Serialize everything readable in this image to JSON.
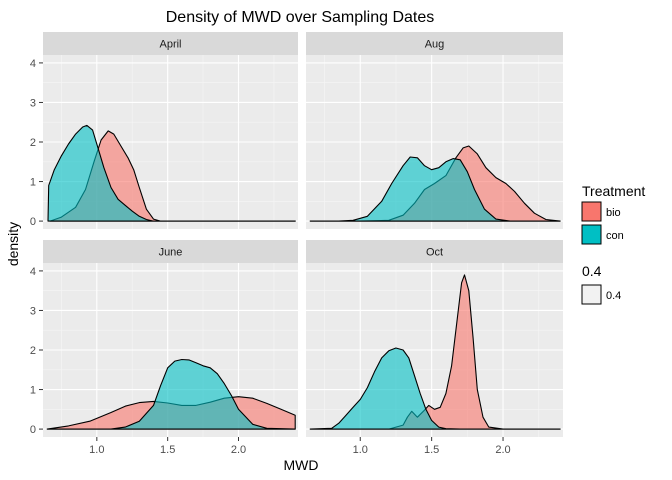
{
  "chart_data": {
    "type": "area",
    "title": "Density of MWD over Sampling Dates",
    "xlabel": "MWD",
    "ylabel": "density",
    "xlim": [
      0.62,
      2.42
    ],
    "ylim": [
      -0.2,
      4.2
    ],
    "x_ticks": [
      1.0,
      1.5,
      2.0
    ],
    "x_tick_labels": [
      "1.0",
      "1.5",
      "2.0"
    ],
    "y_ticks": [
      0,
      1,
      2,
      3,
      4
    ],
    "y_tick_labels": [
      "0",
      "1",
      "2",
      "3",
      "4"
    ],
    "grid": true,
    "facet_layout": "2x2",
    "legend": {
      "title": "Treatment",
      "placement": "right",
      "items": [
        {
          "label": "bio",
          "color": "#F8766D"
        },
        {
          "label": "con",
          "color": "#00BFC4"
        }
      ],
      "alpha_title": "0.4",
      "alpha_label": "0.4"
    },
    "colors": {
      "bio": "#F8766D",
      "con": "#00BFC4",
      "panel_bg": "#EBEBEB",
      "strip_bg": "#D9D9D9"
    },
    "fill_alpha": 0.6,
    "facets": [
      {
        "name": "April",
        "series": [
          {
            "name": "bio",
            "x": [
              0.67,
              0.75,
              0.85,
              0.92,
              0.98,
              1.03,
              1.08,
              1.12,
              1.17,
              1.22,
              1.26,
              1.3,
              1.35,
              1.4,
              1.45,
              1.5,
              2.0,
              2.4
            ],
            "y": [
              0.0,
              0.1,
              0.35,
              0.8,
              1.5,
              2.05,
              2.28,
              2.2,
              1.9,
              1.6,
              1.3,
              0.85,
              0.3,
              0.05,
              0.0,
              0.0,
              0.0,
              0.0
            ]
          },
          {
            "name": "con",
            "x": [
              0.655,
              0.66,
              0.7,
              0.75,
              0.8,
              0.85,
              0.9,
              0.93,
              0.97,
              1.0,
              1.05,
              1.1,
              1.15,
              1.2,
              1.25,
              1.3,
              1.35,
              1.4,
              1.5,
              2.0,
              2.4
            ],
            "y": [
              0.0,
              0.9,
              1.3,
              1.65,
              1.95,
              2.2,
              2.38,
              2.42,
              2.3,
              1.95,
              1.35,
              0.85,
              0.55,
              0.4,
              0.25,
              0.12,
              0.04,
              0.0,
              0.0,
              0.0,
              0.0
            ]
          }
        ]
      },
      {
        "name": "Aug",
        "series": [
          {
            "name": "bio",
            "x": [
              0.65,
              1.0,
              1.2,
              1.3,
              1.38,
              1.45,
              1.52,
              1.6,
              1.67,
              1.72,
              1.76,
              1.82,
              1.88,
              1.95,
              2.02,
              2.08,
              2.15,
              2.22,
              2.3,
              2.4
            ],
            "y": [
              0.0,
              0.0,
              0.02,
              0.15,
              0.45,
              0.8,
              0.95,
              1.15,
              1.6,
              1.85,
              1.9,
              1.7,
              1.35,
              1.1,
              0.95,
              0.75,
              0.45,
              0.2,
              0.04,
              0.0
            ]
          },
          {
            "name": "con",
            "x": [
              0.65,
              0.85,
              0.95,
              1.05,
              1.15,
              1.22,
              1.3,
              1.35,
              1.4,
              1.45,
              1.5,
              1.55,
              1.6,
              1.65,
              1.7,
              1.75,
              1.8,
              1.87,
              1.95,
              2.05,
              2.4
            ],
            "y": [
              0.0,
              0.0,
              0.02,
              0.12,
              0.5,
              0.95,
              1.4,
              1.62,
              1.6,
              1.4,
              1.3,
              1.35,
              1.5,
              1.58,
              1.55,
              1.25,
              0.8,
              0.3,
              0.05,
              0.0,
              0.0
            ]
          }
        ]
      },
      {
        "name": "June",
        "series": [
          {
            "name": "bio",
            "x": [
              0.65,
              0.8,
              0.95,
              1.1,
              1.2,
              1.3,
              1.4,
              1.5,
              1.6,
              1.7,
              1.8,
              1.9,
              2.0,
              2.1,
              2.2,
              2.3,
              2.4,
              2.4
            ],
            "y": [
              0.0,
              0.08,
              0.2,
              0.42,
              0.58,
              0.67,
              0.7,
              0.66,
              0.6,
              0.6,
              0.68,
              0.78,
              0.82,
              0.78,
              0.65,
              0.5,
              0.35,
              0.0
            ]
          },
          {
            "name": "con",
            "x": [
              0.65,
              1.1,
              1.2,
              1.3,
              1.4,
              1.45,
              1.5,
              1.55,
              1.6,
              1.65,
              1.7,
              1.75,
              1.8,
              1.85,
              1.9,
              1.95,
              2.0,
              2.1,
              2.2,
              2.4
            ],
            "y": [
              0.0,
              0.0,
              0.05,
              0.2,
              0.6,
              1.1,
              1.55,
              1.72,
              1.76,
              1.75,
              1.68,
              1.6,
              1.55,
              1.4,
              1.15,
              0.85,
              0.5,
              0.12,
              0.02,
              0.0
            ]
          }
        ]
      },
      {
        "name": "Oct",
        "series": [
          {
            "name": "bio",
            "x": [
              0.65,
              1.2,
              1.3,
              1.33,
              1.36,
              1.4,
              1.45,
              1.48,
              1.52,
              1.56,
              1.6,
              1.64,
              1.68,
              1.71,
              1.73,
              1.76,
              1.79,
              1.82,
              1.86,
              1.9,
              2.0,
              2.4
            ],
            "y": [
              0.0,
              0.0,
              0.1,
              0.3,
              0.45,
              0.3,
              0.48,
              0.6,
              0.5,
              0.55,
              0.9,
              1.6,
              2.8,
              3.7,
              3.9,
              3.5,
              2.3,
              1.0,
              0.3,
              0.05,
              0.0,
              0.0
            ]
          },
          {
            "name": "con",
            "x": [
              0.65,
              0.8,
              0.85,
              0.9,
              0.95,
              1.0,
              1.05,
              1.1,
              1.15,
              1.2,
              1.25,
              1.3,
              1.34,
              1.38,
              1.42,
              1.46,
              1.5,
              1.55,
              1.6,
              1.7,
              2.4
            ],
            "y": [
              0.0,
              0.02,
              0.15,
              0.35,
              0.55,
              0.75,
              1.05,
              1.45,
              1.8,
              1.98,
              2.05,
              2.0,
              1.8,
              1.35,
              0.9,
              0.5,
              0.22,
              0.05,
              0.01,
              0.0,
              0.0
            ]
          }
        ]
      }
    ]
  }
}
